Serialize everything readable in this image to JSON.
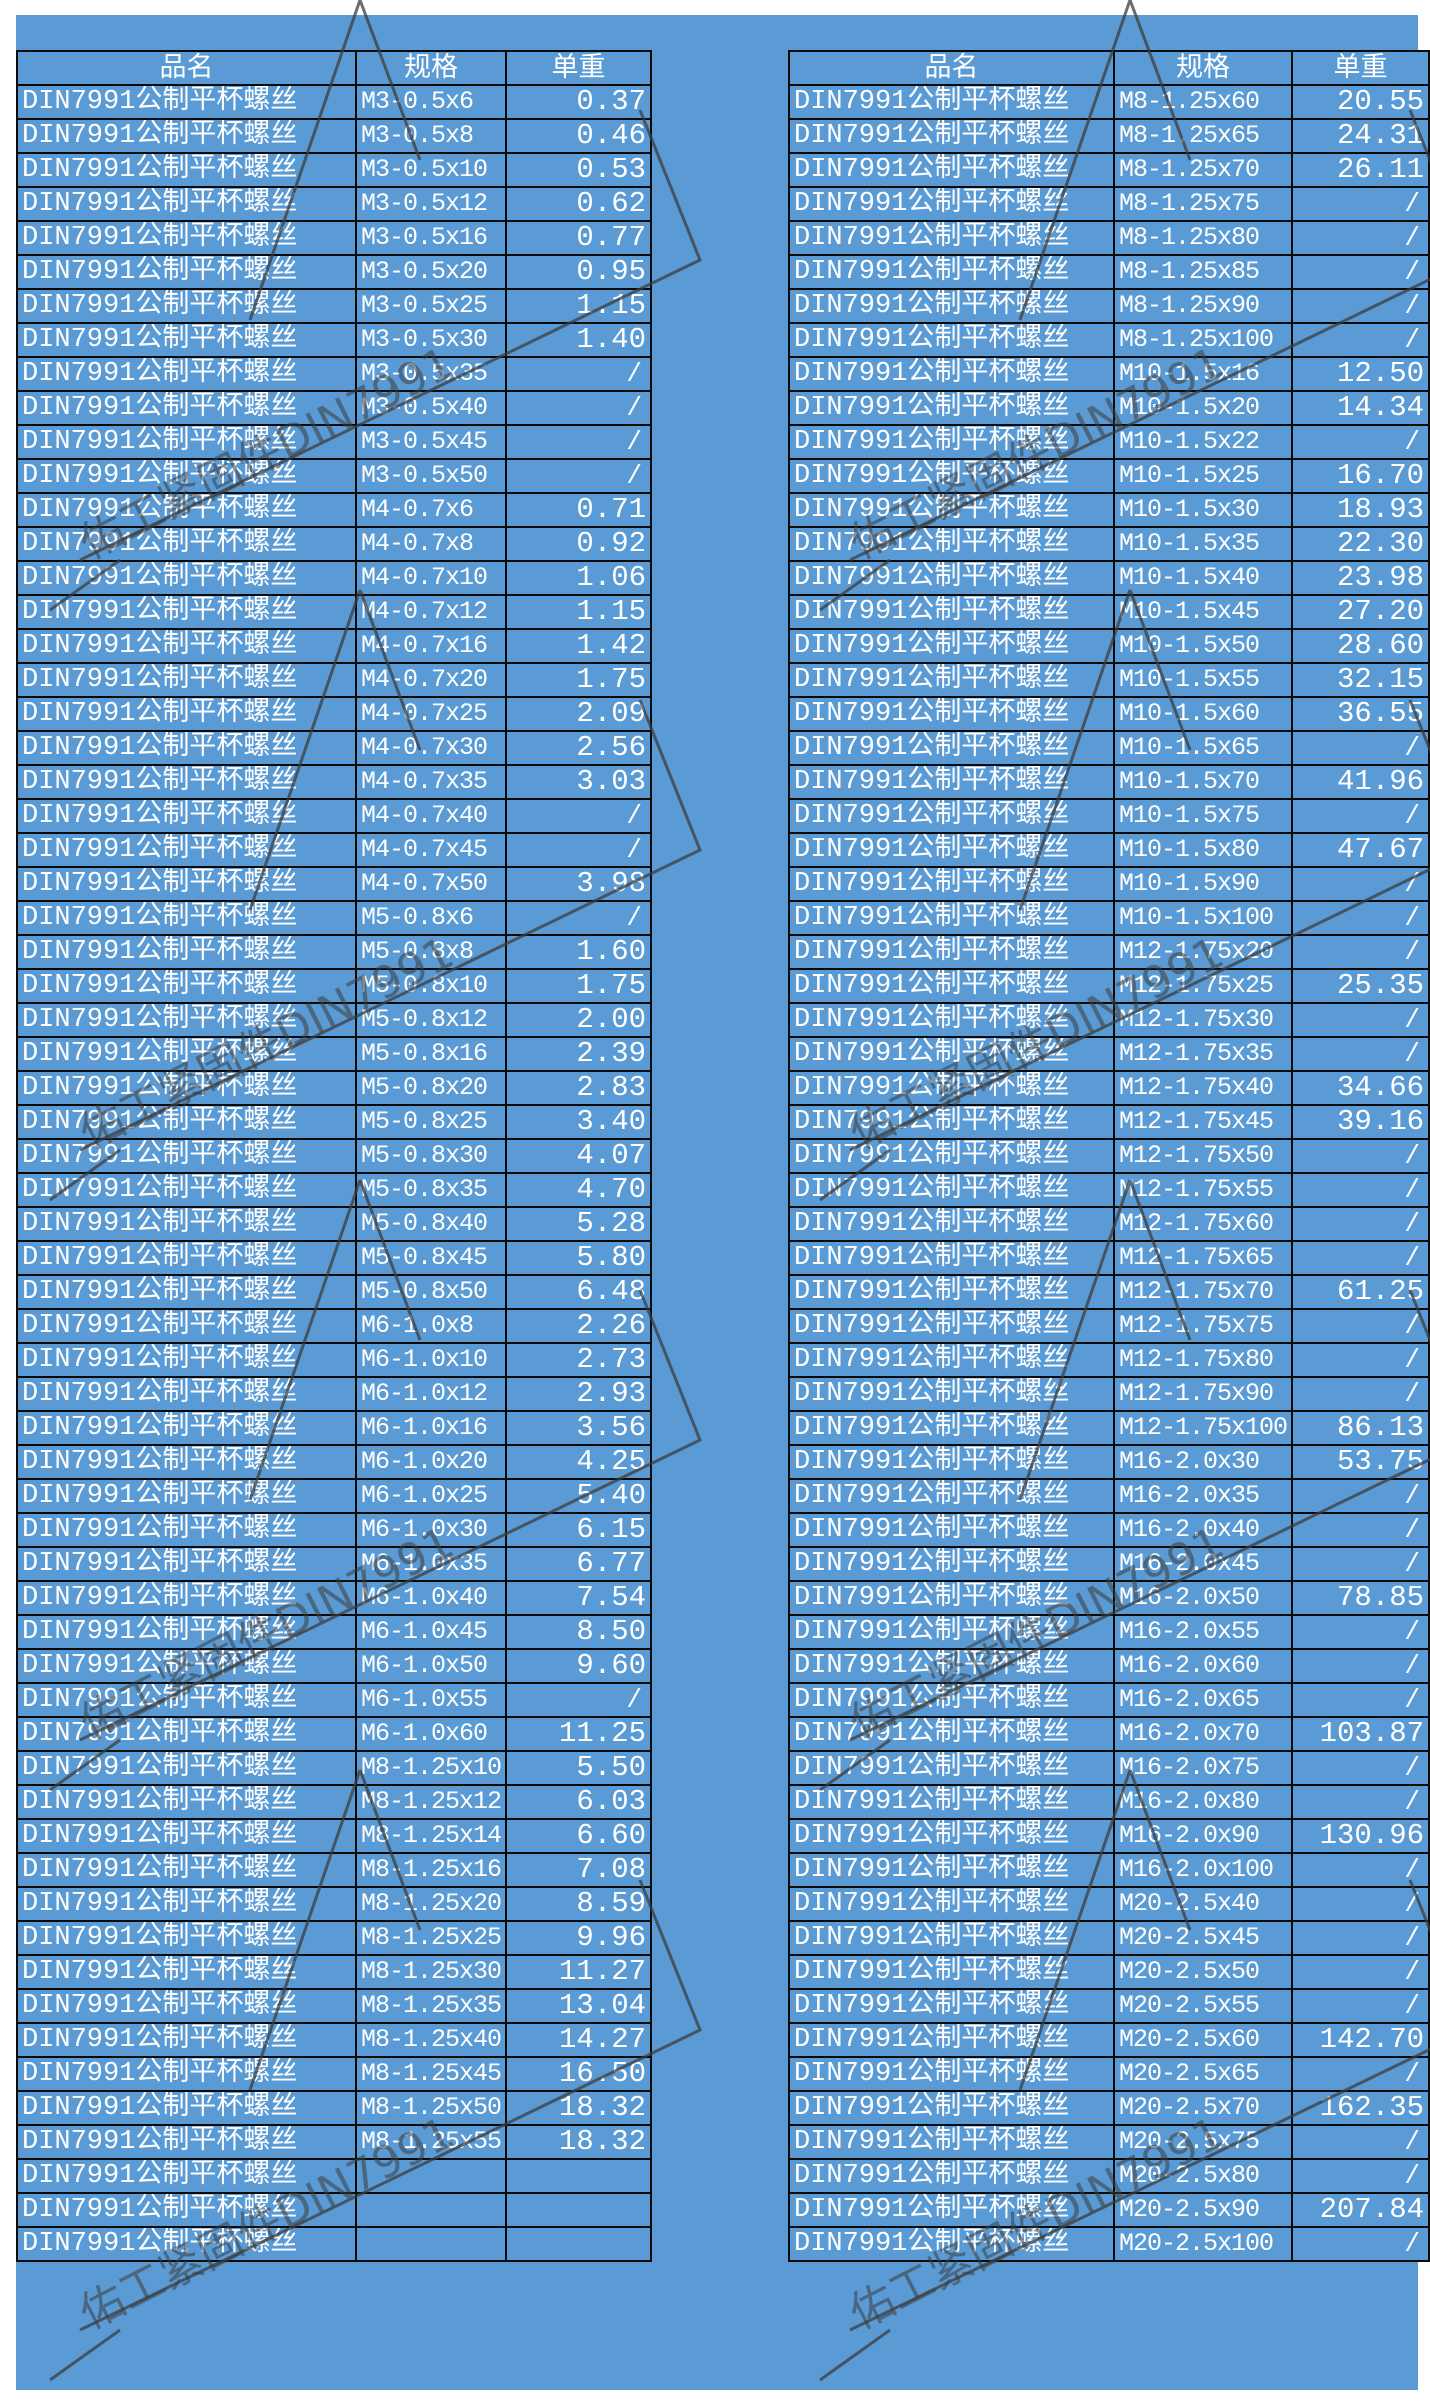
{
  "headers": {
    "name": "品名",
    "spec": "规格",
    "weight": "单重"
  },
  "product_name": "DIN7991公制平杯螺丝",
  "watermark": "佑工紧固件DIN7991",
  "left_table": [
    [
      "M3-0.5x6",
      "0.37"
    ],
    [
      "M3-0.5x8",
      "0.46"
    ],
    [
      "M3-0.5x10",
      "0.53"
    ],
    [
      "M3-0.5x12",
      "0.62"
    ],
    [
      "M3-0.5x16",
      "0.77"
    ],
    [
      "M3-0.5x20",
      "0.95"
    ],
    [
      "M3-0.5x25",
      "1.15"
    ],
    [
      "M3-0.5x30",
      "1.40"
    ],
    [
      "M3-0.5x35",
      "/"
    ],
    [
      "M3-0.5x40",
      "/"
    ],
    [
      "M3-0.5x45",
      "/"
    ],
    [
      "M3-0.5x50",
      "/"
    ],
    [
      "M4-0.7x6",
      "0.71"
    ],
    [
      "M4-0.7x8",
      "0.92"
    ],
    [
      "M4-0.7x10",
      "1.06"
    ],
    [
      "M4-0.7x12",
      "1.15"
    ],
    [
      "M4-0.7x16",
      "1.42"
    ],
    [
      "M4-0.7x20",
      "1.75"
    ],
    [
      "M4-0.7x25",
      "2.09"
    ],
    [
      "M4-0.7x30",
      "2.56"
    ],
    [
      "M4-0.7x35",
      "3.03"
    ],
    [
      "M4-0.7x40",
      "/"
    ],
    [
      "M4-0.7x45",
      "/"
    ],
    [
      "M4-0.7x50",
      "3.98"
    ],
    [
      "M5-0.8x6",
      "/"
    ],
    [
      "M5-0.8x8",
      "1.60"
    ],
    [
      "M5-0.8x10",
      "1.75"
    ],
    [
      "M5-0.8x12",
      "2.00"
    ],
    [
      "M5-0.8x16",
      "2.39"
    ],
    [
      "M5-0.8x20",
      "2.83"
    ],
    [
      "M5-0.8x25",
      "3.40"
    ],
    [
      "M5-0.8x30",
      "4.07"
    ],
    [
      "M5-0.8x35",
      "4.70"
    ],
    [
      "M5-0.8x40",
      "5.28"
    ],
    [
      "M5-0.8x45",
      "5.80"
    ],
    [
      "M5-0.8x50",
      "6.48"
    ],
    [
      "M6-1.0x8",
      "2.26"
    ],
    [
      "M6-1.0x10",
      "2.73"
    ],
    [
      "M6-1.0x12",
      "2.93"
    ],
    [
      "M6-1.0x16",
      "3.56"
    ],
    [
      "M6-1.0x20",
      "4.25"
    ],
    [
      "M6-1.0x25",
      "5.40"
    ],
    [
      "M6-1.0x30",
      "6.15"
    ],
    [
      "M6-1.0x35",
      "6.77"
    ],
    [
      "M6-1.0x40",
      "7.54"
    ],
    [
      "M6-1.0x45",
      "8.50"
    ],
    [
      "M6-1.0x50",
      "9.60"
    ],
    [
      "M6-1.0x55",
      "/"
    ],
    [
      "M6-1.0x60",
      "11.25"
    ],
    [
      "M8-1.25x10",
      "5.50"
    ],
    [
      "M8-1.25x12",
      "6.03"
    ],
    [
      "M8-1.25x14",
      "6.60"
    ],
    [
      "M8-1.25x16",
      "7.08"
    ],
    [
      "M8-1.25x20",
      "8.59"
    ],
    [
      "M8-1.25x25",
      "9.96"
    ],
    [
      "M8-1.25x30",
      "11.27"
    ],
    [
      "M8-1.25x35",
      "13.04"
    ],
    [
      "M8-1.25x40",
      "14.27"
    ],
    [
      "M8-1.25x45",
      "16.50"
    ],
    [
      "M8-1.25x50",
      "18.32"
    ],
    [
      "M8-1.25x55",
      "18.32"
    ],
    [
      "",
      ""
    ],
    [
      "",
      ""
    ],
    [
      "",
      ""
    ]
  ],
  "right_table": [
    [
      "M8-1.25x60",
      "20.55"
    ],
    [
      "M8-1.25x65",
      "24.31"
    ],
    [
      "M8-1.25x70",
      "26.11"
    ],
    [
      "M8-1.25x75",
      "/"
    ],
    [
      "M8-1.25x80",
      "/"
    ],
    [
      "M8-1.25x85",
      "/"
    ],
    [
      "M8-1.25x90",
      "/"
    ],
    [
      "M8-1.25x100",
      "/"
    ],
    [
      "M10-1.5x16",
      "12.50"
    ],
    [
      "M10-1.5x20",
      "14.34"
    ],
    [
      "M10-1.5x22",
      "/"
    ],
    [
      "M10-1.5x25",
      "16.70"
    ],
    [
      "M10-1.5x30",
      "18.93"
    ],
    [
      "M10-1.5x35",
      "22.30"
    ],
    [
      "M10-1.5x40",
      "23.98"
    ],
    [
      "M10-1.5x45",
      "27.20"
    ],
    [
      "M10-1.5x50",
      "28.60"
    ],
    [
      "M10-1.5x55",
      "32.15"
    ],
    [
      "M10-1.5x60",
      "36.55"
    ],
    [
      "M10-1.5x65",
      "/"
    ],
    [
      "M10-1.5x70",
      "41.96"
    ],
    [
      "M10-1.5x75",
      "/"
    ],
    [
      "M10-1.5x80",
      "47.67"
    ],
    [
      "M10-1.5x90",
      "/"
    ],
    [
      "M10-1.5x100",
      "/"
    ],
    [
      "M12-1.75x20",
      "/"
    ],
    [
      "M12-1.75x25",
      "25.35"
    ],
    [
      "M12-1.75x30",
      "/"
    ],
    [
      "M12-1.75x35",
      "/"
    ],
    [
      "M12-1.75x40",
      "34.66"
    ],
    [
      "M12-1.75x45",
      "39.16"
    ],
    [
      "M12-1.75x50",
      "/"
    ],
    [
      "M12-1.75x55",
      "/"
    ],
    [
      "M12-1.75x60",
      "/"
    ],
    [
      "M12-1.75x65",
      "/"
    ],
    [
      "M12-1.75x70",
      "61.25"
    ],
    [
      "M12-1.75x75",
      "/"
    ],
    [
      "M12-1.75x80",
      "/"
    ],
    [
      "M12-1.75x90",
      "/"
    ],
    [
      "M12-1.75x100",
      "86.13"
    ],
    [
      "M16-2.0x30",
      "53.75"
    ],
    [
      "M16-2.0x35",
      "/"
    ],
    [
      "M16-2.0x40",
      "/"
    ],
    [
      "M16-2.0x45",
      "/"
    ],
    [
      "M16-2.0x50",
      "78.85"
    ],
    [
      "M16-2.0x55",
      "/"
    ],
    [
      "M16-2.0x60",
      "/"
    ],
    [
      "M16-2.0x65",
      "/"
    ],
    [
      "M16-2.0x70",
      "103.87"
    ],
    [
      "M16-2.0x75",
      "/"
    ],
    [
      "M16-2.0x80",
      "/"
    ],
    [
      "M16-2.0x90",
      "130.96"
    ],
    [
      "M16-2.0x100",
      "/"
    ],
    [
      "M20-2.5x40",
      "/"
    ],
    [
      "M20-2.5x45",
      "/"
    ],
    [
      "M20-2.5x50",
      "/"
    ],
    [
      "M20-2.5x55",
      "/"
    ],
    [
      "M20-2.5x60",
      "142.70"
    ],
    [
      "M20-2.5x65",
      "/"
    ],
    [
      "M20-2.5x70",
      "162.35"
    ],
    [
      "M20-2.5x75",
      "/"
    ],
    [
      "M20-2.5x80",
      "/"
    ],
    [
      "M20-2.5x90",
      "207.84"
    ],
    [
      "M20-2.5x100",
      "/"
    ]
  ]
}
